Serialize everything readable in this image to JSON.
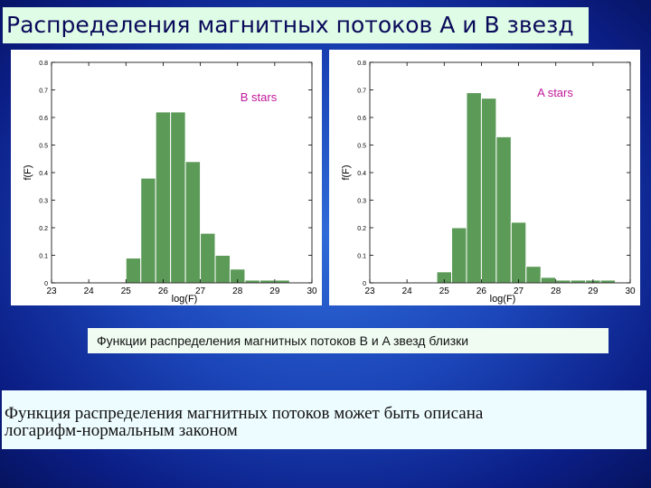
{
  "slide": {
    "title": "Распределения магнитных потоков А и В звезд",
    "caption": "Функции распределения магнитных потоков B и A звезд близки",
    "conclusion_lines": [
      "Функция распределения магнитных потоков может быть описана",
      "логарифм-нормальным законом"
    ]
  },
  "colors": {
    "bar_fill": "#5b9a57",
    "annotation": "#c0189a",
    "axis": "#000000"
  },
  "chart_data": [
    {
      "type": "bar",
      "annotation": "B stars",
      "xlabel": "log(F)",
      "ylabel": "f(F)",
      "xlim": [
        23,
        30
      ],
      "ylim": [
        0,
        0.8
      ],
      "xticks": [
        23,
        24,
        25,
        26,
        27,
        28,
        29,
        30
      ],
      "yticks": [
        0,
        0.1,
        0.2,
        0.3,
        0.4,
        0.5,
        0.6,
        0.7,
        0.8
      ],
      "bin_width": 0.4,
      "bins": [
        {
          "x": 25.2,
          "y": 0.09
        },
        {
          "x": 25.6,
          "y": 0.38
        },
        {
          "x": 26.0,
          "y": 0.62
        },
        {
          "x": 26.4,
          "y": 0.62
        },
        {
          "x": 26.8,
          "y": 0.44
        },
        {
          "x": 27.2,
          "y": 0.18
        },
        {
          "x": 27.6,
          "y": 0.1
        },
        {
          "x": 28.0,
          "y": 0.05
        },
        {
          "x": 28.4,
          "y": 0.01
        },
        {
          "x": 28.8,
          "y": 0.01
        },
        {
          "x": 29.2,
          "y": 0.01
        }
      ]
    },
    {
      "type": "bar",
      "annotation": "A stars",
      "xlabel": "log(F)",
      "ylabel": "f(F)",
      "xlim": [
        23,
        30
      ],
      "ylim": [
        0,
        0.8
      ],
      "xticks": [
        23,
        24,
        25,
        26,
        27,
        28,
        29,
        30
      ],
      "yticks": [
        0,
        0.1,
        0.2,
        0.3,
        0.4,
        0.5,
        0.6,
        0.7,
        0.8
      ],
      "bin_width": 0.4,
      "bins": [
        {
          "x": 25.0,
          "y": 0.04
        },
        {
          "x": 25.4,
          "y": 0.2
        },
        {
          "x": 25.8,
          "y": 0.69
        },
        {
          "x": 26.2,
          "y": 0.67
        },
        {
          "x": 26.6,
          "y": 0.53
        },
        {
          "x": 27.0,
          "y": 0.22
        },
        {
          "x": 27.4,
          "y": 0.06
        },
        {
          "x": 27.8,
          "y": 0.02
        },
        {
          "x": 28.2,
          "y": 0.01
        },
        {
          "x": 28.6,
          "y": 0.01
        },
        {
          "x": 29.0,
          "y": 0.01
        },
        {
          "x": 29.4,
          "y": 0.01
        }
      ]
    }
  ]
}
